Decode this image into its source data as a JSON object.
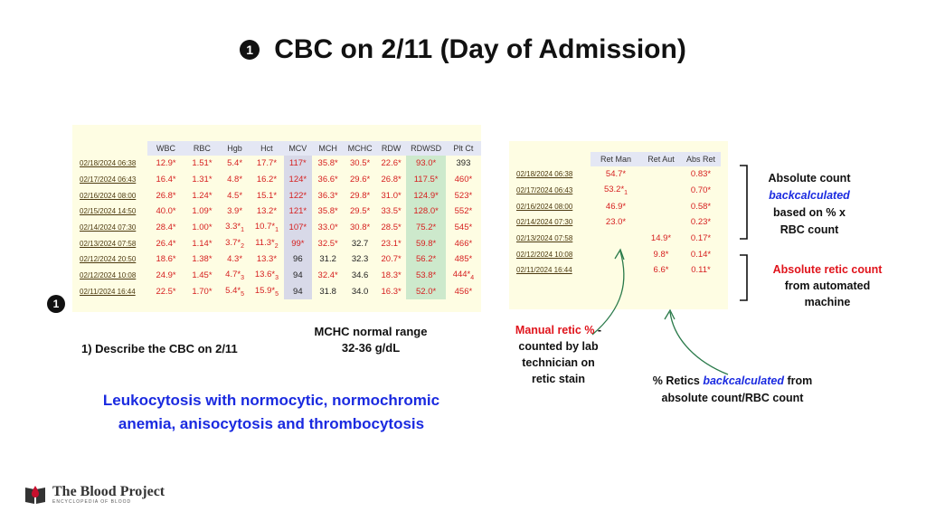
{
  "header": {
    "marker": "1",
    "title": "CBC on 2/11 (Day of Admission)"
  },
  "cbc_table": {
    "columns": [
      "",
      "WBC",
      "RBC",
      "Hgb",
      "Hct",
      "MCV",
      "MCH",
      "MCHC",
      "RDW",
      "RDWSD",
      "Plt Ct"
    ],
    "rows": [
      {
        "date": "02/18/2024 06:38",
        "cells": [
          "12.9*",
          "1.51*",
          "5.4*",
          "17.7*",
          "117*",
          "35.8*",
          "30.5*",
          "22.6*",
          "93.0*",
          "393"
        ]
      },
      {
        "date": "02/17/2024 06:43",
        "cells": [
          "16.4*",
          "1.31*",
          "4.8*",
          "16.2*",
          "124*",
          "36.6*",
          "29.6*",
          "26.8*",
          "117.5*",
          "460*"
        ]
      },
      {
        "date": "02/16/2024 08:00",
        "cells": [
          "26.8*",
          "1.24*",
          "4.5*",
          "15.1*",
          "122*",
          "36.3*",
          "29.8*",
          "31.0*",
          "124.9*",
          "523*"
        ]
      },
      {
        "date": "02/15/2024 14:50",
        "cells": [
          "40.0*",
          "1.09*",
          "3.9*",
          "13.2*",
          "121*",
          "35.8*",
          "29.5*",
          "33.5*",
          "128.0*",
          "552*"
        ]
      },
      {
        "date": "02/14/2024 07:30",
        "cells": [
          "28.4*",
          "1.00*",
          "3.3*1",
          "10.7*1",
          "107*",
          "33.0*",
          "30.8*",
          "28.5*",
          "75.2*",
          "545*"
        ]
      },
      {
        "date": "02/13/2024 07:58",
        "cells": [
          "26.4*",
          "1.14*",
          "3.7*2",
          "11.3*2",
          "99*",
          "32.5*",
          "32.7",
          "23.1*",
          "59.8*",
          "466*"
        ]
      },
      {
        "date": "02/12/2024 20:50",
        "cells": [
          "18.6*",
          "1.38*",
          "4.3*",
          "13.3*",
          "96",
          "31.2",
          "32.3",
          "20.7*",
          "56.2*",
          "485*"
        ]
      },
      {
        "date": "02/12/2024 10:08",
        "cells": [
          "24.9*",
          "1.45*",
          "4.7*3",
          "13.6*3",
          "94",
          "32.4*",
          "34.6",
          "18.3*",
          "53.8*",
          "444*4"
        ]
      },
      {
        "date": "02/11/2024 16:44",
        "cells": [
          "22.5*",
          "1.70*",
          "5.4*5",
          "15.9*5",
          "94",
          "31.8",
          "34.0",
          "16.3*",
          "52.0*",
          "456*"
        ]
      }
    ]
  },
  "row_marker": "1",
  "mchc_note": {
    "line1": "MCHC normal range",
    "line2": "32-36 g/dL"
  },
  "question": "1) Describe the CBC on 2/11",
  "answer": {
    "line1": "Leukocytosis with normocytic, normochromic",
    "line2": "anemia, anisocytosis and thrombocytosis"
  },
  "retic_table": {
    "columns": [
      "",
      "Ret Man",
      "Ret Aut",
      "Abs Ret"
    ],
    "rows": [
      {
        "date": "02/18/2024 06:38",
        "cells": [
          "54.7*",
          "",
          "0.83*"
        ]
      },
      {
        "date": "02/17/2024 06:43",
        "cells": [
          "53.2*1",
          "",
          "0.70*"
        ]
      },
      {
        "date": "02/16/2024 08:00",
        "cells": [
          "46.9*",
          "",
          "0.58*"
        ]
      },
      {
        "date": "02/14/2024 07:30",
        "cells": [
          "23.0*",
          "",
          "0.23*"
        ]
      },
      {
        "date": "02/13/2024 07:58",
        "cells": [
          "",
          "14.9*",
          "0.17*"
        ]
      },
      {
        "date": "02/12/2024 10:08",
        "cells": [
          "",
          "9.8*",
          "0.14*"
        ]
      },
      {
        "date": "02/11/2024 16:44",
        "cells": [
          "",
          "6.6*",
          "0.11*"
        ]
      }
    ]
  },
  "annotations": {
    "abs_count": {
      "line1": "Absolute count",
      "line2": "backcalculated",
      "line3": "based on % x",
      "line4": "RBC count"
    },
    "abs_retic": {
      "line1": "Absolute retic count",
      "line2": "from automated",
      "line3": "machine"
    },
    "manual": {
      "red": "Manual retic %",
      "rest1": " -",
      "line2": "counted by lab",
      "line3": "technician on",
      "line4": "retic stain"
    },
    "pct": {
      "pre": "% Retics ",
      "ital": "backcalculated",
      "post": " from",
      "line2": "absolute count/RBC count"
    }
  },
  "logo": {
    "name": "The Blood Project",
    "tagline": "ENCYCLOPEDIA OF BLOOD"
  },
  "colors": {
    "red": "#e0141c",
    "blue": "#1a2ae0",
    "lab_bg": "#fefde3"
  }
}
